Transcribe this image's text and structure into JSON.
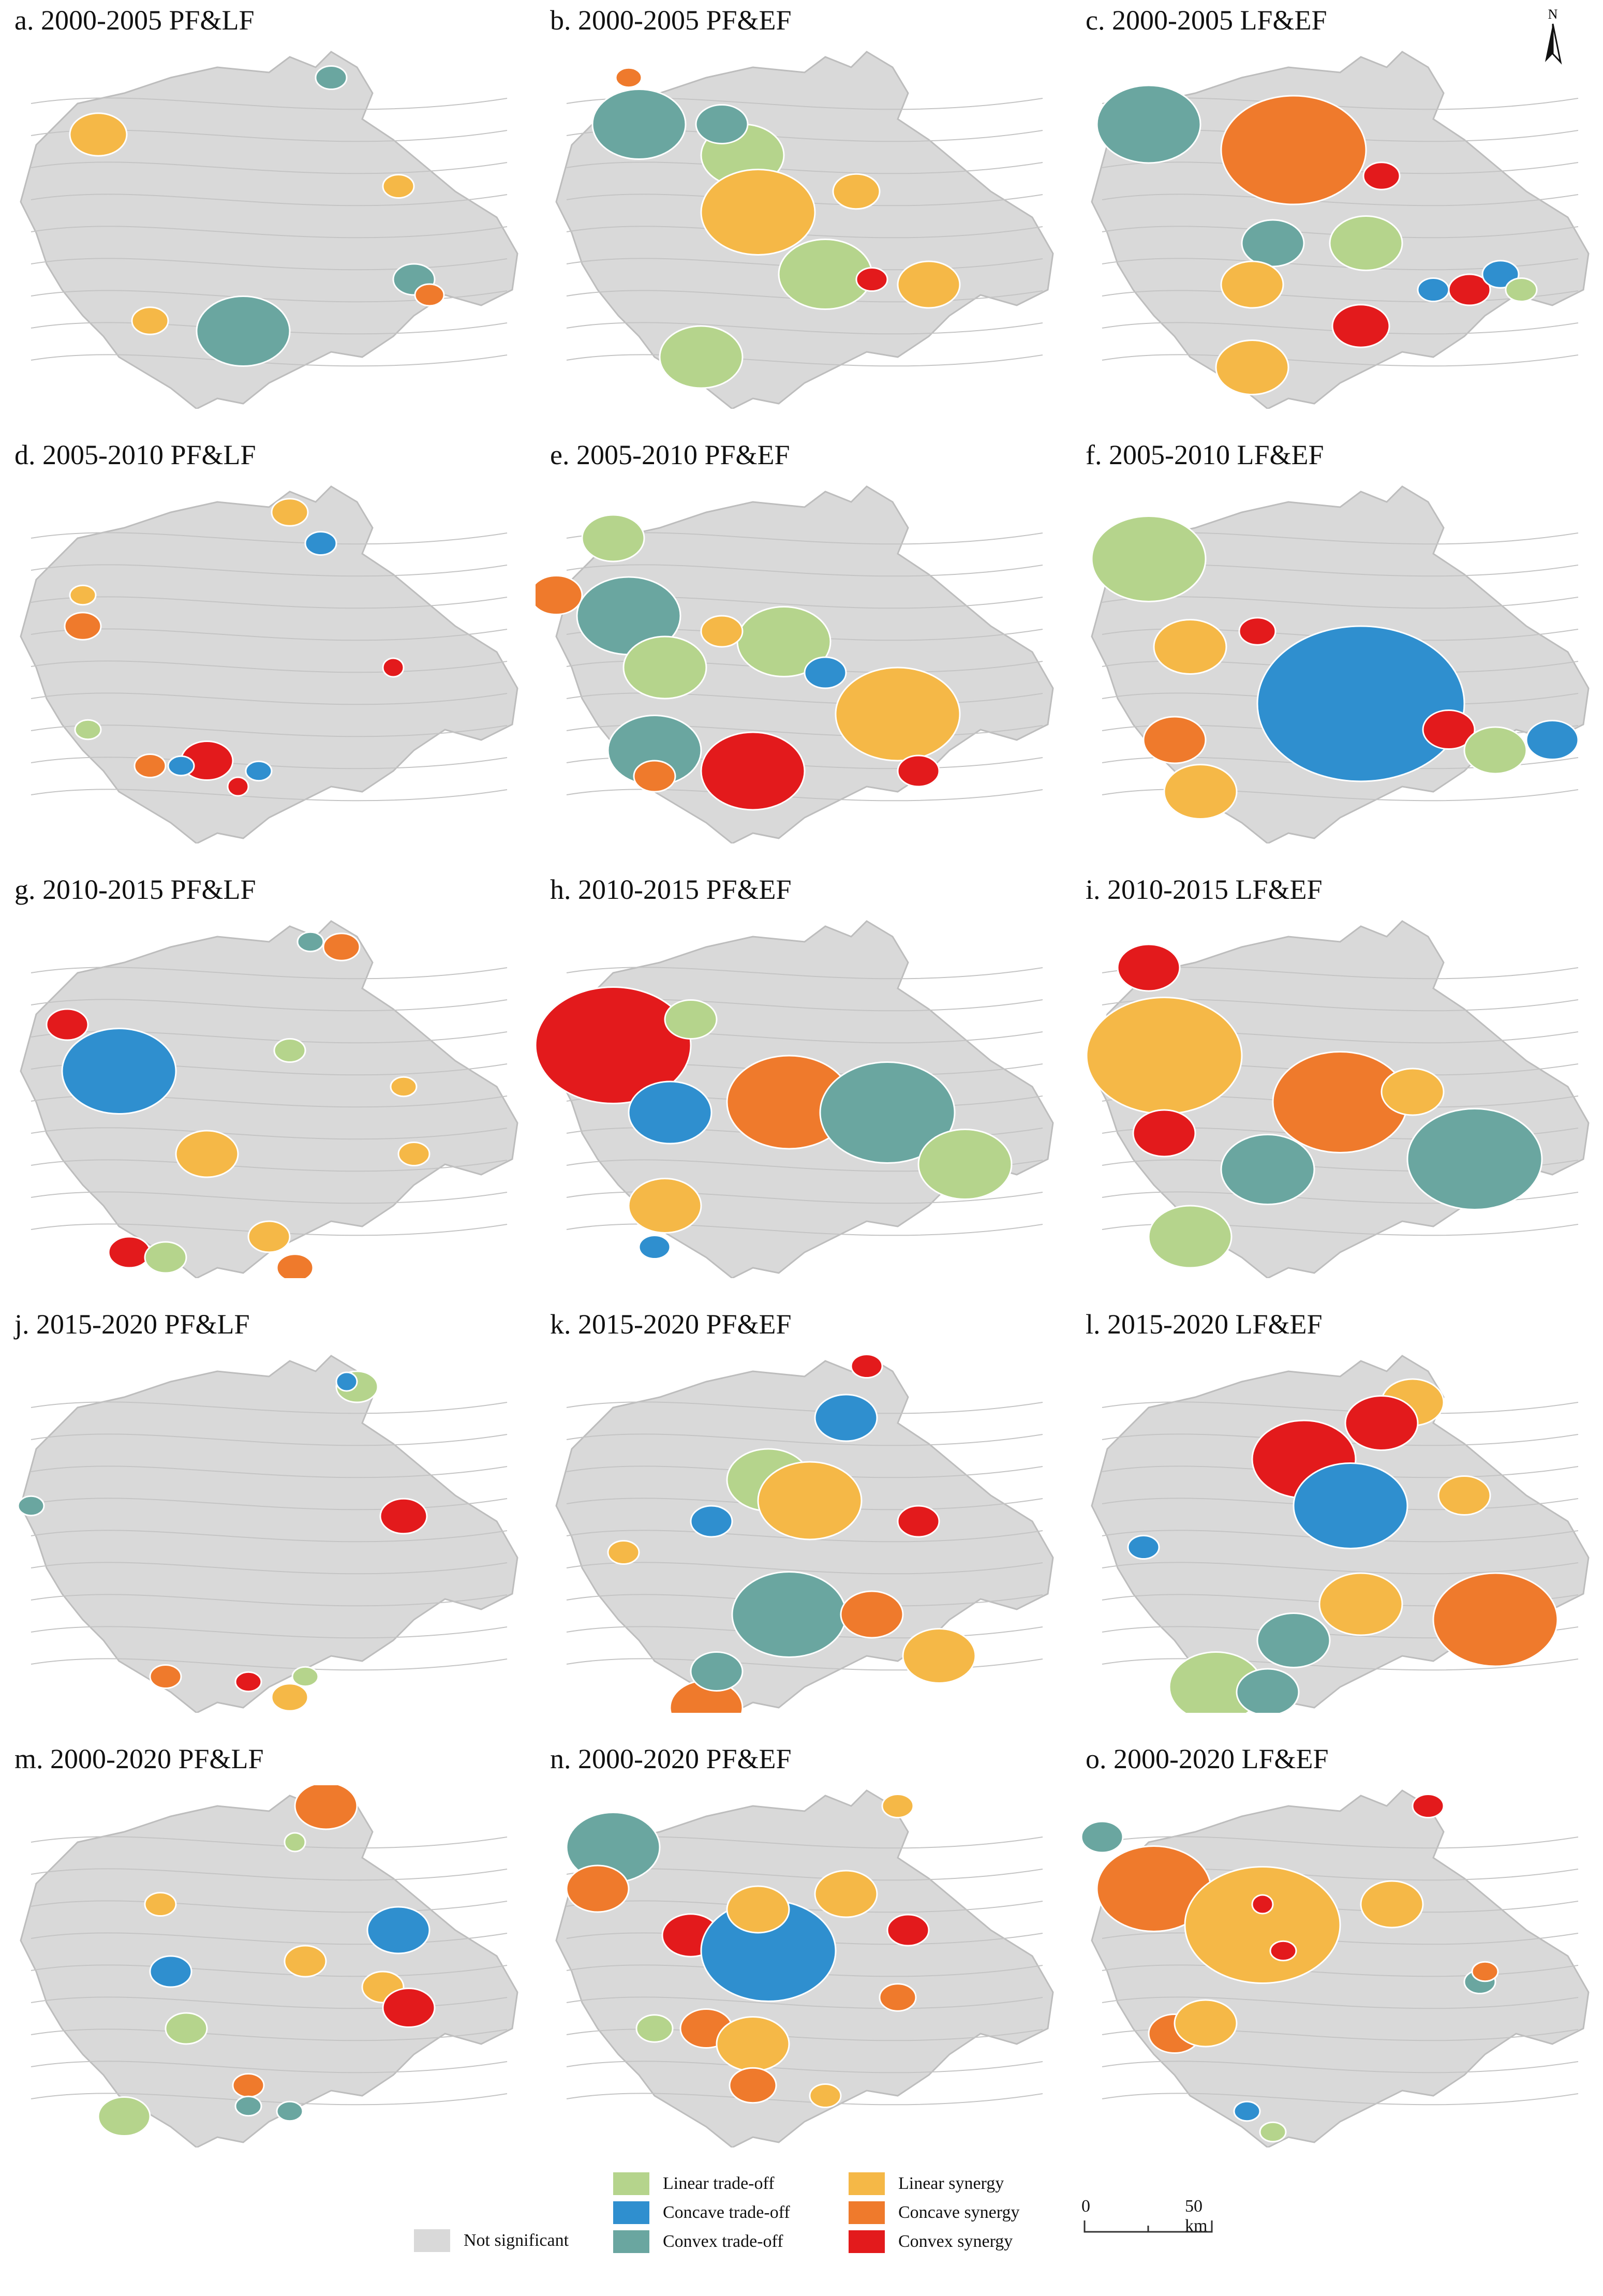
{
  "north_arrow": {
    "letter": "N"
  },
  "panels": [
    {
      "label": "a. 2000-2005  PF&LF"
    },
    {
      "label": "b. 2000-2005  PF&EF"
    },
    {
      "label": "c. 2000-2005  LF&EF"
    },
    {
      "label": "d. 2005-2010  PF&LF"
    },
    {
      "label": "e. 2005-2010  PF&EF"
    },
    {
      "label": "f. 2005-2010  LF&EF"
    },
    {
      "label": "g. 2010-2015  PF&LF"
    },
    {
      "label": "h. 2010-2015  PF&EF"
    },
    {
      "label": "i. 2010-2015  LF&EF"
    },
    {
      "label": "j. 2015-2020  PF&LF"
    },
    {
      "label": "k. 2015-2020  PF&EF"
    },
    {
      "label": "l. 2015-2020  LF&EF"
    },
    {
      "label": "m. 2000-2020  PF&LF"
    },
    {
      "label": "n. 2000-2020  PF&EF"
    },
    {
      "label": "o. 2000-2020  LF&EF"
    }
  ],
  "legend": {
    "not_significant": {
      "label": "Not significant",
      "color": "#d9d9d9"
    },
    "linear_tradeoff": {
      "label": "Linear trade-off",
      "color": "#b5d48c"
    },
    "concave_tradeoff": {
      "label": "Concave trade-off",
      "color": "#2f8fcf"
    },
    "convex_tradeoff": {
      "label": "Convex trade-off",
      "color": "#6aa6a0"
    },
    "linear_synergy": {
      "label": "Linear synergy",
      "color": "#f5b847"
    },
    "concave_synergy": {
      "label": "Concave synergy",
      "color": "#ef7a2c"
    },
    "convex_synergy": {
      "label": "Convex synergy",
      "color": "#e31a1c"
    }
  },
  "scale": {
    "zero": "0",
    "distance": "50 km"
  }
}
